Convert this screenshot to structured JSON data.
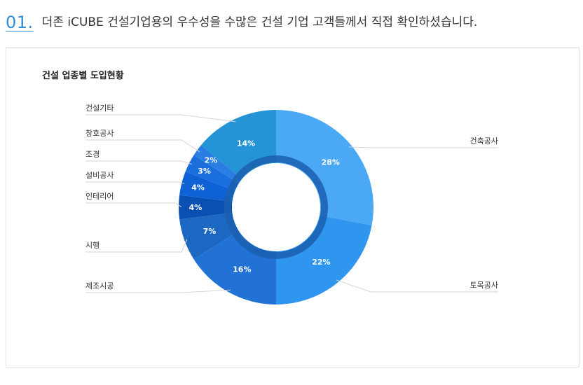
{
  "heading": {
    "number": "01.",
    "text": "더존 iCUBE 건설기업용의 우수성을 수많은 건설 기업 고객들께서 직접 확인하셨습니다."
  },
  "chart_data": {
    "type": "pie",
    "title": "건설 업종별 도입현황",
    "style": "donut",
    "slices": [
      {
        "label": "건축공사",
        "value": 28,
        "display": "28%",
        "color": "#4aa8f5"
      },
      {
        "label": "토목공사",
        "value": 22,
        "display": "22%",
        "color": "#2f96ef"
      },
      {
        "label": "제조시공",
        "value": 16,
        "display": "16%",
        "color": "#2272d6"
      },
      {
        "label": "시행",
        "value": 7,
        "display": "7%",
        "color": "#1c67c2"
      },
      {
        "label": "인테리어",
        "value": 4,
        "display": "4%",
        "color": "#0a4fb2"
      },
      {
        "label": "설비공사",
        "value": 4,
        "display": "4%",
        "color": "#0f61d6"
      },
      {
        "label": "조경",
        "value": 3,
        "display": "3%",
        "color": "#1a6fdc"
      },
      {
        "label": "창호공사",
        "value": 2,
        "display": "2%",
        "color": "#2a7de2"
      },
      {
        "label": "건설기타",
        "value": 14,
        "display": "14%",
        "color": "#2494d6"
      }
    ]
  }
}
